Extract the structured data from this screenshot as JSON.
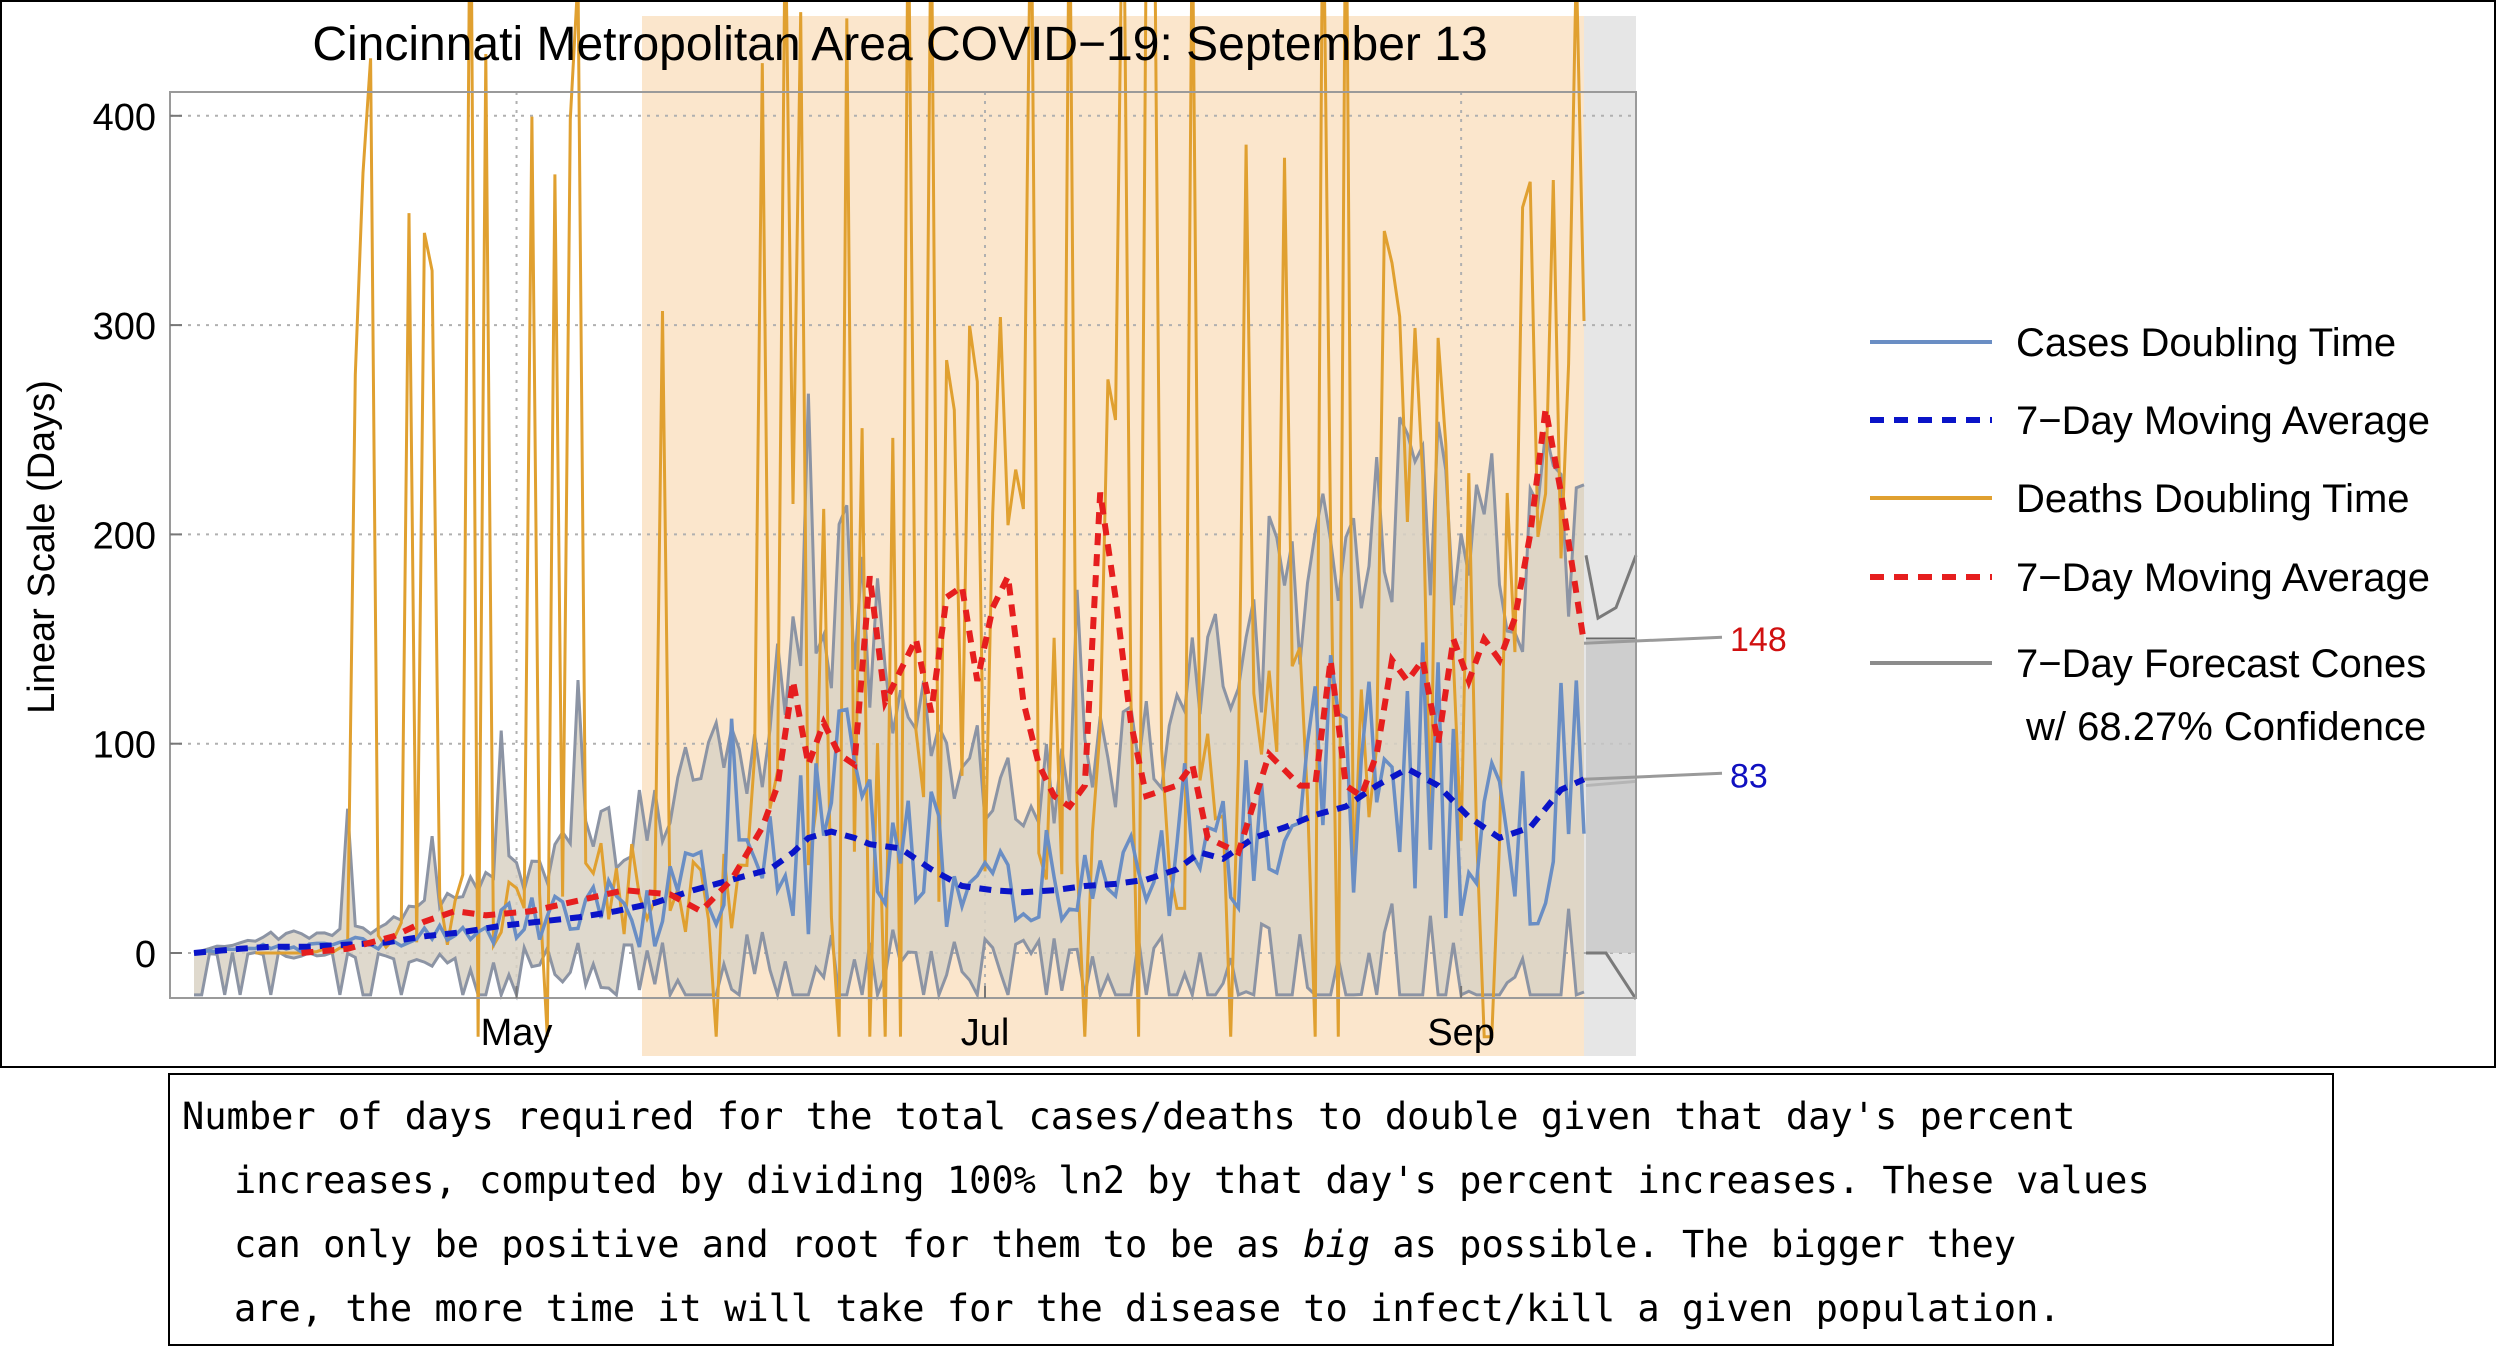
{
  "chart_data": {
    "type": "line",
    "title": "Cincinnati Metropolitan Area COVID−19: September 13",
    "ylabel": "Linear Scale (Days)",
    "xlabel": "",
    "ylim": [
      -22,
      410
    ],
    "x_ticks": [
      "May",
      "Jul",
      "Sep"
    ],
    "y_ticks": [
      0,
      100,
      200,
      300,
      400
    ],
    "grid": true,
    "legend_position": "right",
    "legend": [
      {
        "label": "Cases Doubling Time",
        "color": "#6a8ec4",
        "dash": false
      },
      {
        "label": "7−Day Moving Average",
        "color": "#0a14c8",
        "dash": true
      },
      {
        "label": "Deaths Doubling Time",
        "color": "#e0a030",
        "dash": false
      },
      {
        "label": "7−Day Moving Average",
        "color": "#e61e1e",
        "dash": true
      },
      {
        "label": "7−Day Forecast Cones",
        "color": "#8c8c8c",
        "dash": false
      },
      {
        "label": "w/ 68.27% Confidence",
        "color": "",
        "dash": false
      }
    ],
    "annotations": [
      {
        "label": "148",
        "value": 148,
        "color": "#d01010",
        "series": "deaths_avg"
      },
      {
        "label": "83",
        "value": 83,
        "color": "#1010c0",
        "series": "cases_avg"
      }
    ],
    "series": [
      {
        "name": "Cases 7-Day Moving Average",
        "key": "cases_avg",
        "color": "#0a14c8",
        "points": [
          [
            0,
            0
          ],
          [
            3,
            1
          ],
          [
            6,
            2
          ],
          [
            10,
            3
          ],
          [
            15,
            3
          ],
          [
            20,
            4
          ],
          [
            25,
            5
          ],
          [
            30,
            8
          ],
          [
            35,
            10
          ],
          [
            40,
            13
          ],
          [
            45,
            15
          ],
          [
            50,
            17
          ],
          [
            55,
            20
          ],
          [
            60,
            24
          ],
          [
            65,
            30
          ],
          [
            70,
            35
          ],
          [
            75,
            40
          ],
          [
            78,
            48
          ],
          [
            80,
            55
          ],
          [
            83,
            58
          ],
          [
            86,
            55
          ],
          [
            88,
            52
          ],
          [
            92,
            50
          ],
          [
            96,
            40
          ],
          [
            100,
            32
          ],
          [
            104,
            30
          ],
          [
            108,
            29
          ],
          [
            112,
            30
          ],
          [
            116,
            32
          ],
          [
            120,
            33
          ],
          [
            124,
            35
          ],
          [
            128,
            40
          ],
          [
            131,
            48
          ],
          [
            134,
            45
          ],
          [
            138,
            55
          ],
          [
            142,
            60
          ],
          [
            146,
            66
          ],
          [
            150,
            70
          ],
          [
            154,
            80
          ],
          [
            158,
            88
          ],
          [
            162,
            80
          ],
          [
            166,
            65
          ],
          [
            170,
            55
          ],
          [
            174,
            60
          ],
          [
            178,
            78
          ],
          [
            181,
            83
          ]
        ]
      },
      {
        "name": "Deaths 7-Day Moving Average",
        "key": "deaths_avg",
        "color": "#e61e1e",
        "points": [
          [
            14,
            0
          ],
          [
            20,
            2
          ],
          [
            26,
            8
          ],
          [
            30,
            15
          ],
          [
            34,
            20
          ],
          [
            38,
            18
          ],
          [
            44,
            20
          ],
          [
            50,
            25
          ],
          [
            56,
            30
          ],
          [
            62,
            28
          ],
          [
            66,
            20
          ],
          [
            70,
            35
          ],
          [
            74,
            60
          ],
          [
            76,
            80
          ],
          [
            78,
            130
          ],
          [
            80,
            90
          ],
          [
            82,
            110
          ],
          [
            84,
            95
          ],
          [
            86,
            90
          ],
          [
            88,
            180
          ],
          [
            90,
            120
          ],
          [
            94,
            150
          ],
          [
            96,
            115
          ],
          [
            98,
            170
          ],
          [
            100,
            175
          ],
          [
            102,
            130
          ],
          [
            104,
            165
          ],
          [
            106,
            180
          ],
          [
            108,
            120
          ],
          [
            110,
            90
          ],
          [
            112,
            75
          ],
          [
            114,
            70
          ],
          [
            116,
            80
          ],
          [
            118,
            220
          ],
          [
            120,
            170
          ],
          [
            122,
            110
          ],
          [
            124,
            75
          ],
          [
            128,
            80
          ],
          [
            130,
            90
          ],
          [
            132,
            55
          ],
          [
            136,
            48
          ],
          [
            140,
            95
          ],
          [
            144,
            80
          ],
          [
            146,
            80
          ],
          [
            148,
            140
          ],
          [
            150,
            80
          ],
          [
            152,
            75
          ],
          [
            154,
            95
          ],
          [
            156,
            140
          ],
          [
            158,
            130
          ],
          [
            160,
            140
          ],
          [
            162,
            100
          ],
          [
            164,
            150
          ],
          [
            166,
            130
          ],
          [
            168,
            150
          ],
          [
            170,
            140
          ],
          [
            172,
            160
          ],
          [
            174,
            200
          ],
          [
            176,
            260
          ],
          [
            178,
            220
          ],
          [
            181,
            148
          ]
        ]
      }
    ],
    "noisy_series": [
      {
        "name": "Cases Doubling Time",
        "key": "cases_raw",
        "color": "#6a8ec4"
      },
      {
        "name": "Deaths Doubling Time",
        "key": "deaths_raw",
        "color": "#e0a030"
      }
    ]
  },
  "caption": {
    "line1": "Number of days required for the total cases/deaths to double given that day's percent",
    "line2": "increases, computed by dividing 100% ln2 by that day's percent increases. These values",
    "line3_pre": "can only be positive and root for them to be as ",
    "line3_em": "big",
    "line3_post": " as possible. The bigger they",
    "line4": "are, the more time it will take for the disease to infect/kill a given population."
  }
}
